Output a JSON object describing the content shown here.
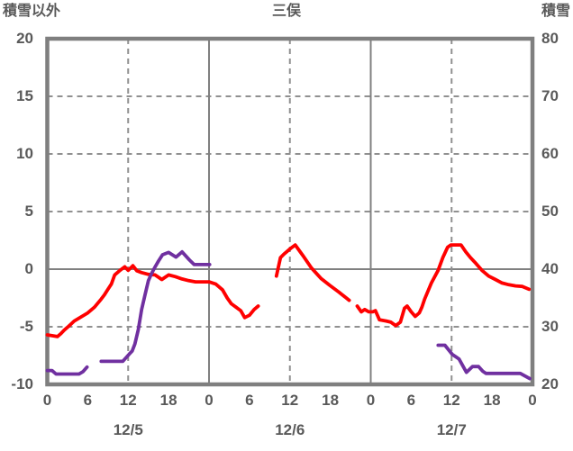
{
  "header": {
    "left_axis_title": "積雪以外",
    "chart_title": "三俣",
    "right_axis_title": "積雪"
  },
  "colors": {
    "red_series": "#ff0000",
    "purple_series": "#7030a0",
    "border": "#7f7f7f",
    "solid_grid": "#808080",
    "dashed_grid": "#909090",
    "text": "#595959",
    "background": "#ffffff"
  },
  "chart_data": {
    "type": "line",
    "title": "三俣",
    "left_axis": {
      "label": "積雪以外",
      "min": -10,
      "max": 20,
      "ticks": [
        20,
        15,
        10,
        5,
        0,
        -5,
        -10
      ]
    },
    "right_axis": {
      "label": "積雪",
      "min": 20,
      "max": 80,
      "ticks": [
        80,
        70,
        60,
        50,
        40,
        30,
        20
      ]
    },
    "x_axis": {
      "range_hours": [
        0,
        72
      ],
      "tick_hours": [
        0,
        6,
        12,
        18,
        24,
        30,
        36,
        42,
        48,
        54,
        60,
        66,
        72
      ],
      "tick_labels": [
        "0",
        "6",
        "12",
        "18",
        "0",
        "6",
        "12",
        "18",
        "0",
        "6",
        "12",
        "18",
        "0"
      ],
      "date_labels": [
        {
          "label": "12/5",
          "hour": 12
        },
        {
          "label": "12/6",
          "hour": 36
        },
        {
          "label": "12/7",
          "hour": 60
        }
      ]
    },
    "gridlines": {
      "horizontal_dashed_left_values": [
        15,
        10,
        5,
        -5
      ],
      "horizontal_solid_left_values": [
        0
      ],
      "vertical_dashed_hours": [
        12,
        36,
        60
      ],
      "vertical_solid_hours": [
        24,
        48
      ]
    },
    "legend": "none",
    "series": [
      {
        "name": "red-line",
        "axis": "left",
        "color": "#ff0000",
        "segments": [
          [
            [
              0,
              -5.7
            ],
            [
              1,
              -5.8
            ],
            [
              1.5,
              -5.85
            ],
            [
              2,
              -5.6
            ],
            [
              2.5,
              -5.3
            ],
            [
              3,
              -5.05
            ],
            [
              4,
              -4.5
            ],
            [
              5,
              -4.15
            ],
            [
              6,
              -3.8
            ],
            [
              7,
              -3.3
            ],
            [
              8,
              -2.6
            ],
            [
              8.5,
              -2.2
            ],
            [
              9,
              -1.75
            ],
            [
              9.5,
              -1.3
            ],
            [
              10,
              -0.5
            ],
            [
              10.7,
              -0.15
            ],
            [
              11.5,
              0.2
            ],
            [
              12,
              -0.1
            ],
            [
              12.7,
              0.3
            ],
            [
              13.3,
              -0.15
            ],
            [
              14,
              -0.3
            ],
            [
              15,
              -0.45
            ],
            [
              16,
              -0.5
            ],
            [
              17,
              -0.9
            ],
            [
              18,
              -0.5
            ],
            [
              19,
              -0.65
            ],
            [
              20,
              -0.85
            ],
            [
              21,
              -1.0
            ],
            [
              22,
              -1.1
            ],
            [
              23,
              -1.1
            ],
            [
              24,
              -1.1
            ],
            [
              25,
              -1.3
            ],
            [
              26,
              -1.8
            ],
            [
              26.7,
              -2.5
            ],
            [
              27.3,
              -3.0
            ],
            [
              28,
              -3.3
            ],
            [
              28.7,
              -3.6
            ],
            [
              29.3,
              -4.2
            ],
            [
              30,
              -4.0
            ],
            [
              30.7,
              -3.5
            ],
            [
              31.3,
              -3.2
            ]
          ],
          [
            [
              34,
              -0.6
            ],
            [
              34.6,
              1.0
            ],
            [
              35.1,
              1.3
            ],
            [
              36.1,
              1.8
            ],
            [
              36.8,
              2.1
            ],
            [
              37.9,
              1.2
            ],
            [
              39.2,
              0.1
            ],
            [
              40.6,
              -0.8
            ],
            [
              41.9,
              -1.4
            ],
            [
              43.3,
              -2.0
            ],
            [
              44.8,
              -2.7
            ]
          ],
          [
            [
              46,
              -3.2
            ],
            [
              46.6,
              -3.7
            ],
            [
              47.1,
              -3.5
            ],
            [
              47.7,
              -3.7
            ],
            [
              48.3,
              -3.7
            ],
            [
              48.7,
              -3.6
            ],
            [
              49.3,
              -4.4
            ],
            [
              50.3,
              -4.5
            ],
            [
              51,
              -4.6
            ],
            [
              51.7,
              -4.9
            ],
            [
              52.4,
              -4.6
            ],
            [
              53,
              -3.4
            ],
            [
              53.4,
              -3.2
            ],
            [
              54,
              -3.7
            ],
            [
              54.6,
              -4.1
            ],
            [
              55.2,
              -3.8
            ],
            [
              55.6,
              -3.3
            ],
            [
              56,
              -2.6
            ],
            [
              57,
              -1.2
            ],
            [
              58,
              -0.1
            ],
            [
              58.7,
              1.0
            ],
            [
              59.4,
              1.9
            ],
            [
              59.9,
              2.1
            ],
            [
              61.4,
              2.1
            ],
            [
              62.1,
              1.5
            ],
            [
              62.8,
              1.0
            ],
            [
              63.6,
              0.5
            ],
            [
              64.5,
              -0.1
            ],
            [
              65.5,
              -0.6
            ],
            [
              66.5,
              -0.9
            ],
            [
              67.5,
              -1.2
            ],
            [
              68.5,
              -1.35
            ],
            [
              69.5,
              -1.45
            ],
            [
              70.5,
              -1.5
            ],
            [
              71.5,
              -1.75
            ]
          ]
        ]
      },
      {
        "name": "purple-line",
        "axis": "right",
        "color": "#7030a0",
        "segments": [
          [
            [
              0,
              22.4
            ],
            [
              0.7,
              22.4
            ],
            [
              1.3,
              21.8
            ],
            [
              4.7,
              21.8
            ],
            [
              5.3,
              22.2
            ],
            [
              5.9,
              23.0
            ]
          ],
          [
            [
              8,
              24.0
            ],
            [
              11.2,
              24.0
            ],
            [
              12.2,
              25.3
            ],
            [
              12.6,
              25.8
            ],
            [
              13,
              27.0
            ],
            [
              13.5,
              29.5
            ],
            [
              14,
              33.0
            ],
            [
              14.5,
              35.5
            ],
            [
              15,
              38.0
            ],
            [
              15.5,
              39.3
            ],
            [
              16,
              40.4
            ],
            [
              16.5,
              41.4
            ],
            [
              17.1,
              42.5
            ],
            [
              18,
              42.9
            ],
            [
              19.1,
              42.1
            ],
            [
              20,
              43.0
            ],
            [
              21.1,
              41.6
            ],
            [
              21.8,
              40.8
            ],
            [
              24.1,
              40.8
            ]
          ],
          [
            [
              58,
              26.8
            ],
            [
              59,
              26.8
            ],
            [
              60.1,
              25.2
            ],
            [
              61.1,
              24.4
            ],
            [
              62.2,
              22.1
            ],
            [
              63.1,
              23.1
            ],
            [
              64,
              23.1
            ],
            [
              64.6,
              22.3
            ],
            [
              65.1,
              21.9
            ],
            [
              70.2,
              21.9
            ],
            [
              71.6,
              21.0
            ]
          ]
        ]
      }
    ]
  }
}
